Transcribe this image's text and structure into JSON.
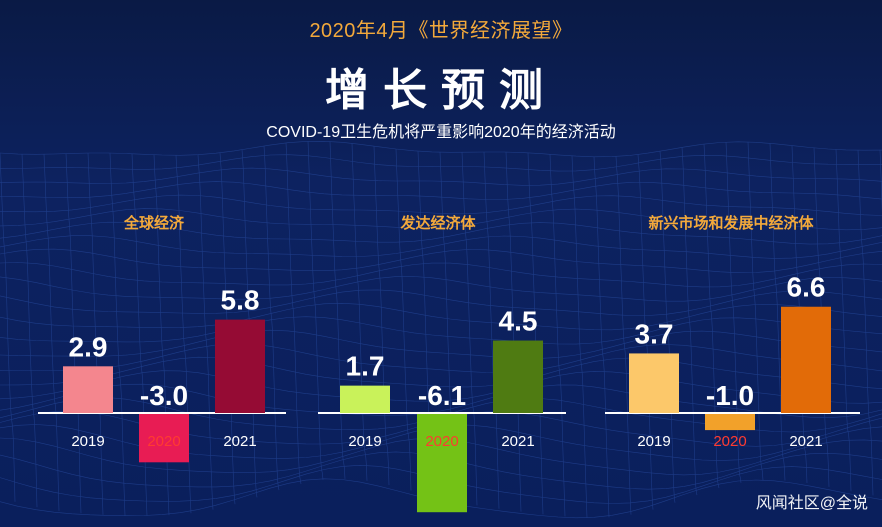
{
  "header": {
    "top_line": "2020年4月《世界经济展望》",
    "title": "增长预测",
    "subtitle": "COVID-19卫生危机将严重影响2020年的经济活动"
  },
  "watermark": "风闻社区@全说",
  "colors": {
    "background": "#0b1d4e",
    "panel_title": "#f3a93b",
    "value_text": "#ffffff",
    "tick_text": "#ffffff",
    "baseline": "#ffffff",
    "highlight_tick": "#ff3b30"
  },
  "chart_data": [
    {
      "type": "bar",
      "title": "全球经济",
      "categories": [
        "2019",
        "2020",
        "2021"
      ],
      "values": [
        2.9,
        -3.0,
        5.8
      ],
      "value_labels": [
        "2.9",
        "-3.0",
        "5.8"
      ],
      "bar_colors": [
        "#f4868e",
        "#e81c54",
        "#950b34"
      ],
      "highlight_category": "2020"
    },
    {
      "type": "bar",
      "title": "发达经济体",
      "categories": [
        "2019",
        "2020",
        "2021"
      ],
      "values": [
        1.7,
        -6.1,
        4.5
      ],
      "value_labels": [
        "1.7",
        "-6.1",
        "4.5"
      ],
      "bar_colors": [
        "#c9f25a",
        "#74c216",
        "#4f7b12"
      ],
      "highlight_category": "2020"
    },
    {
      "type": "bar",
      "title": "新兴市场和发展中经济体",
      "categories": [
        "2019",
        "2020",
        "2021"
      ],
      "values": [
        3.7,
        -1.0,
        6.6
      ],
      "value_labels": [
        "3.7",
        "-1.0",
        "6.6"
      ],
      "bar_colors": [
        "#fcc86a",
        "#f2a12a",
        "#e26b08"
      ],
      "highlight_category": "2020"
    }
  ]
}
